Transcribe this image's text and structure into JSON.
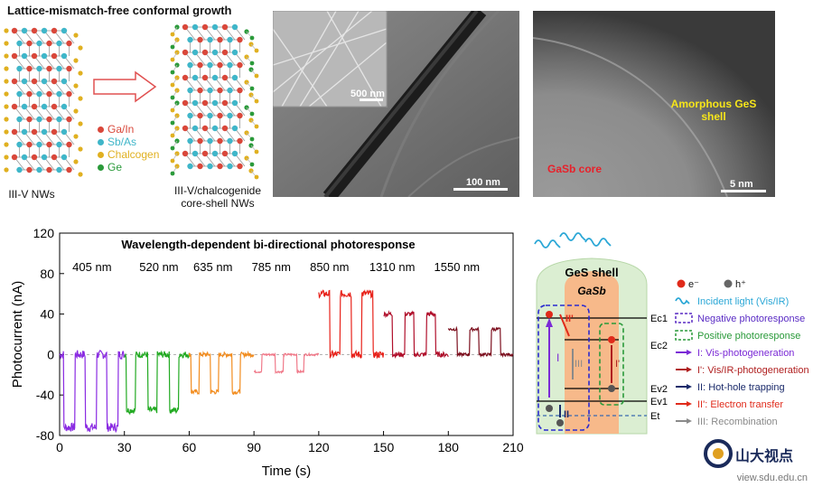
{
  "top": {
    "title": "Lattice-mismatch-free conformal growth",
    "legend": [
      {
        "label": "Ga/In",
        "color": "#d9473a"
      },
      {
        "label": "Sb/As",
        "color": "#3fb6c9"
      },
      {
        "label": "Chalcogen",
        "color": "#e0b020"
      },
      {
        "label": "Ge",
        "color": "#2a9a3a"
      }
    ],
    "left_caption": "III-V NWs",
    "right_caption_1": "III-V/chalcogenide",
    "right_caption_2": "core-shell NWs",
    "tem1_inset_scale": "500 nm",
    "tem1_scale": "100 nm",
    "tem2_core": "GaSb core",
    "tem2_shell_1": "Amorphous GeS",
    "tem2_shell_2": "shell",
    "tem2_scale": "5 nm"
  },
  "chart_data": {
    "type": "line",
    "title": "Wavelength-dependent bi-directional photoresponse",
    "xlabel": "Time (s)",
    "ylabel": "Photocurrent  (nA)",
    "xlim": [
      0,
      210
    ],
    "ylim": [
      -80,
      120
    ],
    "xticks": [
      0,
      30,
      60,
      90,
      120,
      150,
      180,
      210
    ],
    "yticks": [
      -80,
      -40,
      0,
      40,
      80,
      120
    ],
    "wavelength_labels": [
      {
        "label": "405 nm",
        "x": 15
      },
      {
        "label": "520 nm",
        "x": 46
      },
      {
        "label": "635 nm",
        "x": 71
      },
      {
        "label": "785 nm",
        "x": 98
      },
      {
        "label": "850 nm",
        "x": 125
      },
      {
        "label": "1310 nm",
        "x": 154
      },
      {
        "label": "1550 nm",
        "x": 184
      }
    ],
    "series": [
      {
        "color": "#8a2be2",
        "on": [
          [
            2,
            7
          ],
          [
            12,
            17
          ],
          [
            22,
            27
          ]
        ],
        "baseline": 0,
        "level": -72
      },
      {
        "color": "#22aa22",
        "on": [
          [
            31,
            35
          ],
          [
            41,
            45
          ],
          [
            51,
            55
          ]
        ],
        "baseline": 0,
        "level": -55
      },
      {
        "color": "#f28c1e",
        "on": [
          [
            61,
            64.5
          ],
          [
            70,
            73.5
          ],
          [
            80,
            83.5
          ]
        ],
        "baseline": 0,
        "level": -37
      },
      {
        "color": "#f07a8a",
        "on": [
          [
            90,
            93.5
          ],
          [
            100,
            103.5
          ],
          [
            110,
            113
          ]
        ],
        "baseline": 0,
        "level": -17
      },
      {
        "color": "#e8221a",
        "on": [
          [
            120,
            125
          ],
          [
            130,
            135
          ],
          [
            140,
            145
          ]
        ],
        "baseline": 0,
        "level": 60
      },
      {
        "color": "#b00f2b",
        "on": [
          [
            150,
            154
          ],
          [
            160,
            164
          ],
          [
            170,
            174
          ]
        ],
        "baseline": 0,
        "level": 40
      },
      {
        "color": "#7c0f1e",
        "on": [
          [
            180,
            184
          ],
          [
            190,
            194
          ],
          [
            200,
            204
          ]
        ],
        "baseline": 0,
        "level": 25
      }
    ]
  },
  "band": {
    "shell_label": "GeS  shell",
    "core_label": "GaSb",
    "levels": [
      "Ec1",
      "Ec2",
      "Ev2",
      "Ev1",
      "Et"
    ],
    "arrows": {
      "I": "I",
      "II": "II",
      "II_prime": "II'",
      "I_prime": "I'",
      "III": "III"
    },
    "legend": [
      {
        "icon": "electron",
        "label": "e⁻"
      },
      {
        "icon": "hole",
        "label": "h⁺"
      },
      {
        "icon": "wave",
        "label": "Incident light (Vis/IR)",
        "color": "#2aa7d6"
      },
      {
        "icon": "box-dash",
        "label": "Negative photoresponse",
        "color": "#5a2cc4"
      },
      {
        "icon": "box-dash",
        "label": "Positive photoresponse",
        "color": "#2a9a3a"
      },
      {
        "icon": "arrow",
        "label": "I: Vis-photogeneration",
        "color": "#7b2ad6"
      },
      {
        "icon": "arrow",
        "label": "I': Vis/IR-photogeneration",
        "color": "#b02020"
      },
      {
        "icon": "arrow",
        "label": "II: Hot-hole trapping",
        "color": "#1a2a6a"
      },
      {
        "icon": "arrow",
        "label": "II': Electron transfer",
        "color": "#e02a1a"
      },
      {
        "icon": "arrow",
        "label": "III: Recombination",
        "color": "#8a8a8a"
      }
    ]
  },
  "watermark": "view.sdu.edu.cn",
  "logo_text": "山大视点"
}
